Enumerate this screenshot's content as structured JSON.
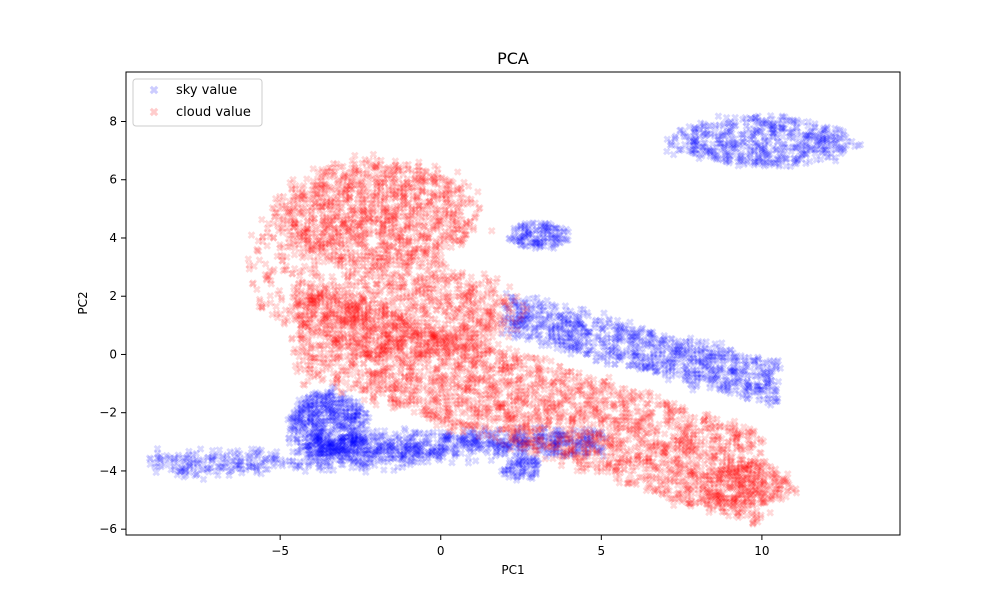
{
  "chart_data": {
    "type": "scatter",
    "title": "PCA",
    "xlabel": "PC1",
    "ylabel": "PC2",
    "xlim": [
      -9.8,
      14.3
    ],
    "ylim": [
      -6.2,
      9.7
    ],
    "xticks": [
      -5,
      0,
      5,
      10
    ],
    "yticks": [
      -6,
      -4,
      -2,
      0,
      2,
      4,
      6,
      8
    ],
    "grid": false,
    "legend_position": "top-left",
    "marker": "X",
    "point_opacity": 0.15,
    "series": [
      {
        "name": "sky value",
        "color": "#0000ff",
        "clusters": [
          {
            "kind": "ellipse",
            "cx": 10.0,
            "cy": 7.3,
            "rx": 2.8,
            "ry": 0.85,
            "n": 520
          },
          {
            "kind": "ellipse",
            "cx": 3.1,
            "cy": 4.1,
            "rx": 0.9,
            "ry": 0.45,
            "n": 140
          },
          {
            "kind": "band",
            "x0": 2.0,
            "y0": 1.4,
            "x1": 10.5,
            "y1": -1.0,
            "width": 1.4,
            "n": 900
          },
          {
            "kind": "ellipse",
            "cx": -3.5,
            "cy": -2.4,
            "rx": 1.2,
            "ry": 1.1,
            "n": 520
          },
          {
            "kind": "band",
            "x0": -4.0,
            "y0": -3.2,
            "x1": 5.0,
            "y1": -3.0,
            "width": 0.8,
            "n": 700
          },
          {
            "kind": "band",
            "x0": -9.0,
            "y0": -3.8,
            "x1": 0.0,
            "y1": -3.4,
            "width": 0.7,
            "n": 350
          },
          {
            "kind": "ellipse",
            "cx": 2.5,
            "cy": -3.9,
            "rx": 0.6,
            "ry": 0.4,
            "n": 80
          }
        ]
      },
      {
        "name": "cloud value",
        "color": "#ff0000",
        "clusters": [
          {
            "kind": "band",
            "x0": -4.5,
            "y0": 0.9,
            "x1": 10.0,
            "y1": -4.3,
            "width": 3.2,
            "n": 2600
          },
          {
            "kind": "ellipse",
            "cx": -2.0,
            "cy": 4.8,
            "rx": 3.0,
            "ry": 1.8,
            "n": 1200
          },
          {
            "kind": "ellipse",
            "cx": -1.0,
            "cy": 1.5,
            "rx": 3.3,
            "ry": 1.6,
            "n": 900
          },
          {
            "kind": "ellipse",
            "cx": 9.5,
            "cy": -4.5,
            "rx": 1.4,
            "ry": 0.8,
            "n": 260
          },
          {
            "kind": "ellipse",
            "cx": -4.8,
            "cy": 3.0,
            "rx": 1.2,
            "ry": 2.0,
            "n": 140
          }
        ]
      }
    ]
  }
}
